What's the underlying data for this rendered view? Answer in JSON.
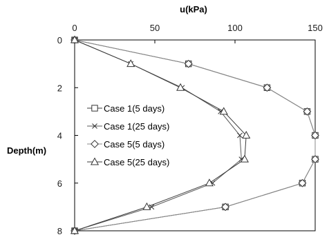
{
  "chart_data": {
    "type": "line",
    "title": "",
    "xlabel": "u(kPa)",
    "ylabel": "Depth(m)",
    "xlim": [
      0,
      150
    ],
    "ylim": [
      0,
      8
    ],
    "y_inverted": true,
    "x_axis_position": "top",
    "x_ticks": [
      0,
      50,
      100,
      150
    ],
    "y_ticks": [
      0,
      2,
      4,
      6,
      8
    ],
    "x_tick_labels": [
      "0",
      "50",
      "100",
      "150"
    ],
    "y_tick_labels": [
      "0",
      "2",
      "4",
      "6",
      "8"
    ],
    "grid": false,
    "legend_position": "center-left",
    "series": [
      {
        "name": "Case 1(5 days)",
        "marker": "square",
        "points": [
          [
            0,
            0
          ],
          [
            71,
            1
          ],
          [
            120,
            2
          ],
          [
            145,
            3
          ],
          [
            150,
            4
          ],
          [
            150,
            5
          ],
          [
            142,
            6
          ],
          [
            94,
            7
          ],
          [
            0,
            8
          ]
        ]
      },
      {
        "name": "Case 1(25 days)",
        "marker": "x",
        "points": [
          [
            0,
            0
          ],
          [
            35,
            1
          ],
          [
            67,
            2
          ],
          [
            91,
            3
          ],
          [
            103,
            4
          ],
          [
            104,
            5
          ],
          [
            86,
            6
          ],
          [
            48,
            7
          ],
          [
            0,
            8
          ]
        ]
      },
      {
        "name": "Case 5(5 days)",
        "marker": "diamond",
        "points": [
          [
            0,
            0
          ],
          [
            71,
            1
          ],
          [
            120,
            2
          ],
          [
            145,
            3
          ],
          [
            150,
            4
          ],
          [
            150,
            5
          ],
          [
            142,
            6
          ],
          [
            94,
            7
          ],
          [
            0,
            8
          ]
        ]
      },
      {
        "name": "Case 5(25 days)",
        "marker": "triangle",
        "points": [
          [
            0,
            0
          ],
          [
            35,
            1
          ],
          [
            66,
            2
          ],
          [
            93,
            3
          ],
          [
            107,
            4
          ],
          [
            106,
            5
          ],
          [
            84,
            6
          ],
          [
            45,
            7
          ],
          [
            0,
            8
          ]
        ]
      }
    ]
  }
}
